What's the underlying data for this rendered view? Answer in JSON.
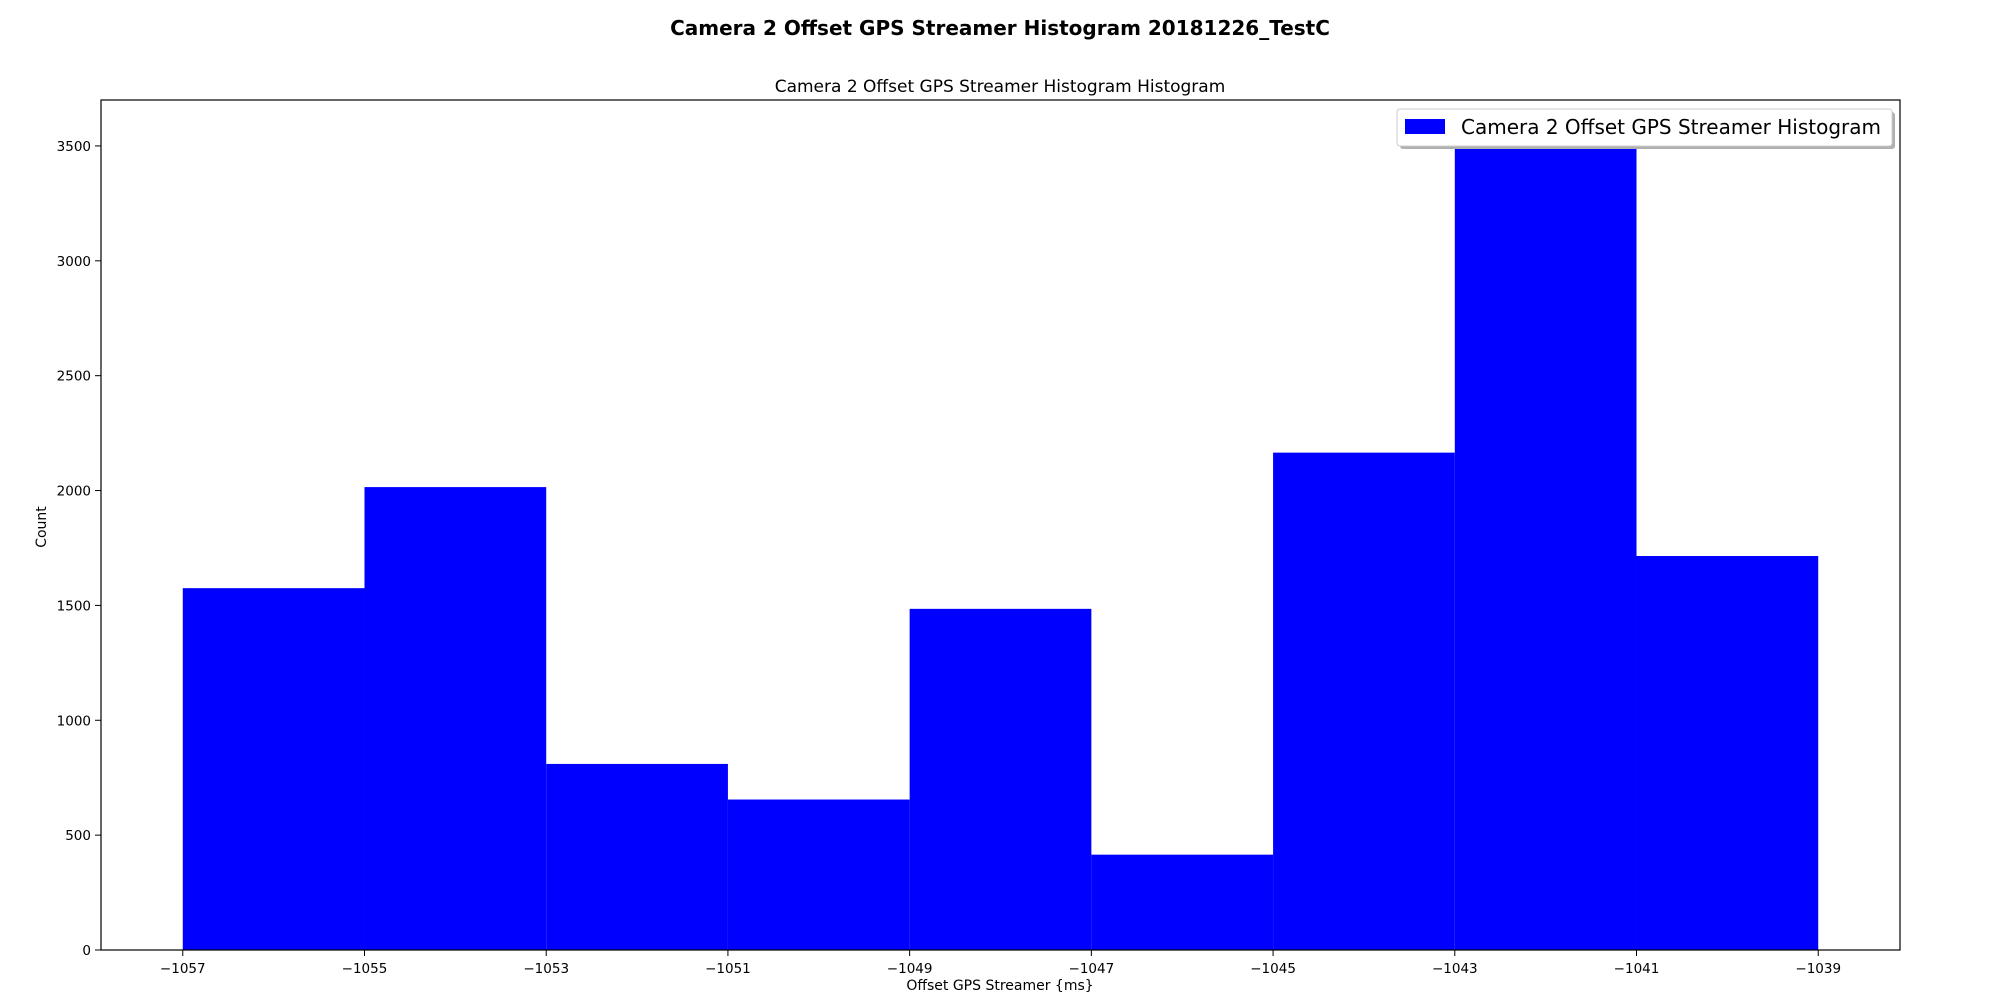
{
  "chart_data": {
    "type": "bar",
    "suptitle": "Camera 2 Offset GPS Streamer Histogram 20181226_TestC",
    "title": "Camera 2 Offset GPS Streamer Histogram Histogram",
    "xlabel": "Offset GPS Streamer {ms}",
    "ylabel": "Count",
    "xlim": [
      -1057.9,
      -1038.1
    ],
    "ylim": [
      0,
      3700
    ],
    "bin_edges": [
      -1057,
      -1055,
      -1053,
      -1051,
      -1049,
      -1047,
      -1045,
      -1043,
      -1041,
      -1039
    ],
    "series": [
      {
        "name": "Camera 2 Offset GPS Streamer Histogram",
        "color": "#0000ff",
        "values": [
          1575,
          2015,
          810,
          655,
          1485,
          415,
          2165,
          3560,
          1715
        ]
      }
    ],
    "xticks": [
      -1057,
      -1055,
      -1053,
      -1051,
      -1049,
      -1047,
      -1045,
      -1043,
      -1041,
      -1039
    ],
    "xtick_labels": [
      "−1057",
      "−1055",
      "−1053",
      "−1051",
      "−1049",
      "−1047",
      "−1045",
      "−1043",
      "−1041",
      "−1039"
    ],
    "yticks": [
      0,
      500,
      1000,
      1500,
      2000,
      2500,
      3000,
      3500
    ],
    "ytick_labels": [
      "0",
      "500",
      "1000",
      "1500",
      "2000",
      "2500",
      "3000",
      "3500"
    ],
    "legend": {
      "position": "top-right",
      "label": "Camera 2 Offset GPS Streamer Histogram"
    },
    "grid": false
  }
}
